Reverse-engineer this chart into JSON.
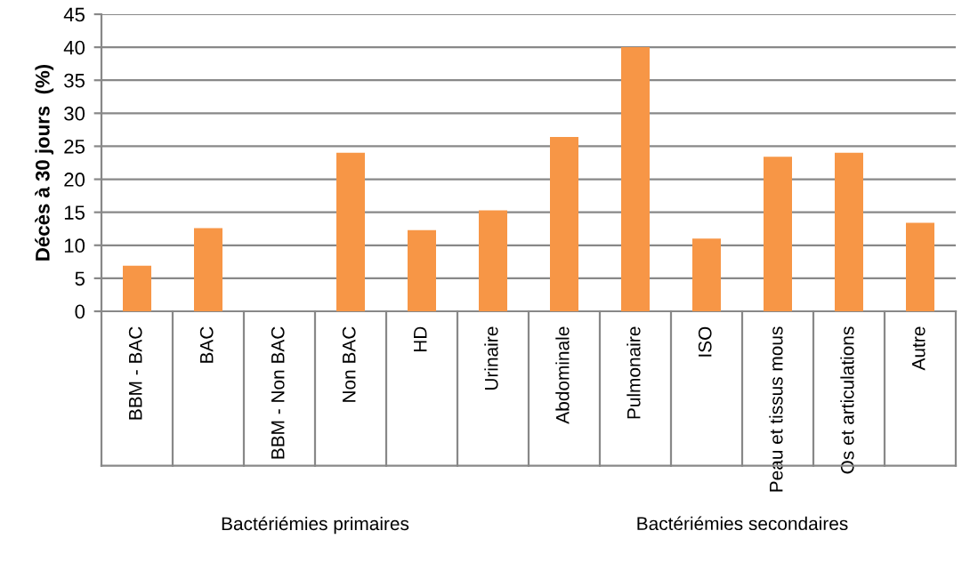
{
  "chart_data": {
    "type": "bar",
    "ylabel": "Décès à 30 jours  (%)",
    "categories": [
      "BBM - BAC",
      "BAC",
      "BBM - Non BAC",
      "Non BAC",
      "HD",
      "Urinaire",
      "Abdominale",
      "Pulmonaire",
      "ISO",
      "Peau et tissus mous",
      "Os et articulations",
      "Autre"
    ],
    "values": [
      6.9,
      12.6,
      0,
      24,
      12.3,
      15.3,
      26.4,
      40,
      11,
      23.4,
      24,
      13.4
    ],
    "color": "#f79646",
    "ylim": [
      0,
      45
    ],
    "yticks": [
      0,
      5,
      10,
      15,
      20,
      25,
      30,
      35,
      40,
      45
    ],
    "grid": "y",
    "annotations": [
      "Bactériémies primaires",
      "Bactériémies secondaires"
    ]
  }
}
